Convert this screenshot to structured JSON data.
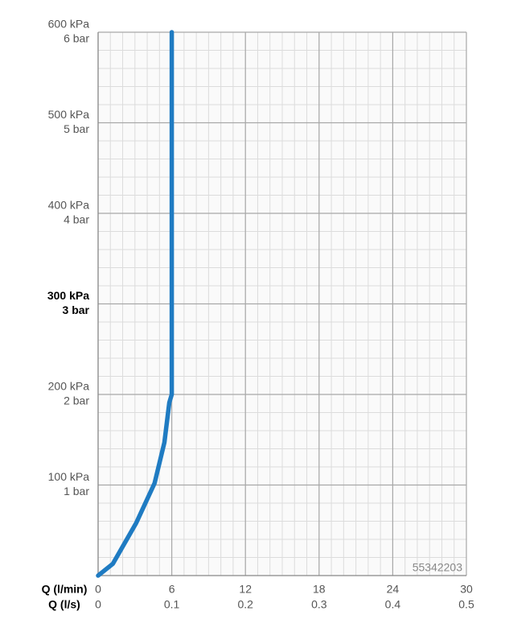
{
  "chart_data": {
    "type": "line",
    "x_label": "Q (l/min)",
    "x2_label": "Q (l/s)",
    "x": [
      0,
      1.2,
      3.1,
      4.6,
      5.4,
      5.8,
      6,
      6
    ],
    "values": [
      0,
      13,
      58,
      102,
      147,
      191,
      200,
      600
    ],
    "color": "#1f7bc2",
    "xlim": [
      0,
      30
    ],
    "xticks": [
      0,
      6,
      12,
      18,
      24,
      30
    ],
    "x2lim": [
      0,
      0.5
    ],
    "x2ticks": [
      0,
      0.1,
      0.2,
      0.3,
      0.4,
      0.5
    ],
    "ylim": [
      0,
      600
    ],
    "yticks": [
      {
        "value": 100,
        "label": "100 kPa"
      },
      {
        "value": 200,
        "label": "200 kPa"
      },
      {
        "value": 300,
        "label": "300 kPa"
      },
      {
        "value": 400,
        "label": "400 kPa"
      },
      {
        "value": 500,
        "label": "500 kPa"
      },
      {
        "value": 600,
        "label": "600 kPa"
      }
    ],
    "y2lim": [
      0,
      6
    ],
    "y2ticks": [
      {
        "value": 1,
        "label": "1 bar"
      },
      {
        "value": 2,
        "label": "2 bar"
      },
      {
        "value": 3,
        "label": "3 bar"
      },
      {
        "value": 4,
        "label": "4 bar"
      },
      {
        "value": 5,
        "label": "5 bar"
      },
      {
        "value": 6,
        "label": "6 bar"
      }
    ],
    "highlight_ytick": 300,
    "grid": true,
    "xminor": 1,
    "yminor": 20,
    "annotation": "55342203"
  }
}
